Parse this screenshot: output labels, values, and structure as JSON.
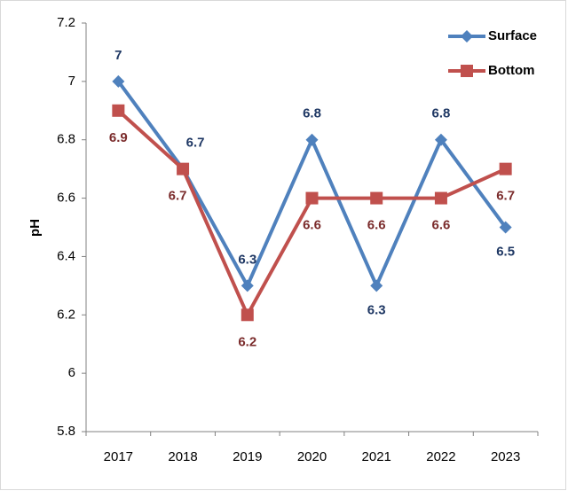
{
  "chart_data": {
    "type": "line",
    "y_label": "pH",
    "categories": [
      "2017",
      "2018",
      "2019",
      "2020",
      "2021",
      "2022",
      "2023"
    ],
    "series": [
      {
        "name": "Surface",
        "color": "#4f81bd",
        "values": [
          7,
          6.7,
          6.3,
          6.8,
          6.3,
          6.8,
          6.5
        ]
      },
      {
        "name": "Bottom",
        "color": "#c0504d",
        "values": [
          6.9,
          6.7,
          6.2,
          6.6,
          6.6,
          6.6,
          6.7
        ]
      }
    ],
    "ylim": [
      5.8,
      7.2
    ],
    "yticks": [
      5.8,
      6,
      6.2,
      6.4,
      6.6,
      6.8,
      7,
      7.2
    ],
    "grid": false,
    "legend": "top-right"
  }
}
